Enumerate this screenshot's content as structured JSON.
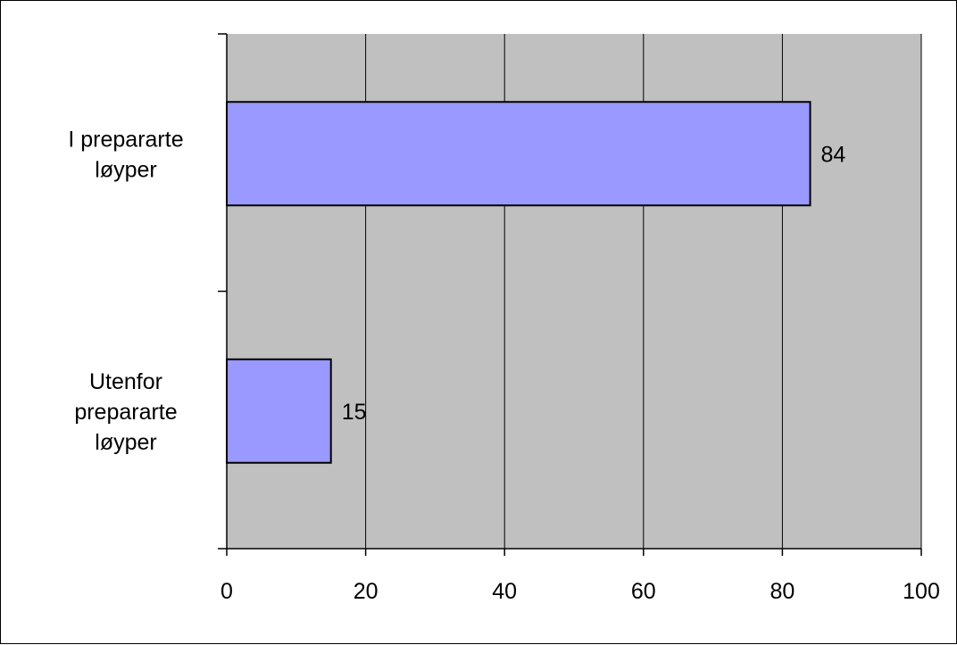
{
  "chart_data": {
    "type": "bar",
    "orientation": "horizontal",
    "categories": [
      [
        "I prepararte",
        "løyper"
      ],
      [
        "Utenfor",
        "prepararte",
        "løyper"
      ]
    ],
    "values": [
      84,
      15
    ],
    "data_labels": [
      "84",
      "15"
    ],
    "xlim": [
      0,
      100
    ],
    "xticks": [
      0,
      20,
      40,
      60,
      80,
      100
    ],
    "xtick_labels": [
      "0",
      "20",
      "40",
      "60",
      "80",
      "100"
    ],
    "title": "",
    "xlabel": "",
    "ylabel": "",
    "grid": "vertical",
    "legend": "none",
    "colors": {
      "plot_background": "#c0c0c0",
      "bar_fill": "#9999ff",
      "bar_stroke": "#000000",
      "gridline": "#000000",
      "axis": "#000000"
    }
  }
}
